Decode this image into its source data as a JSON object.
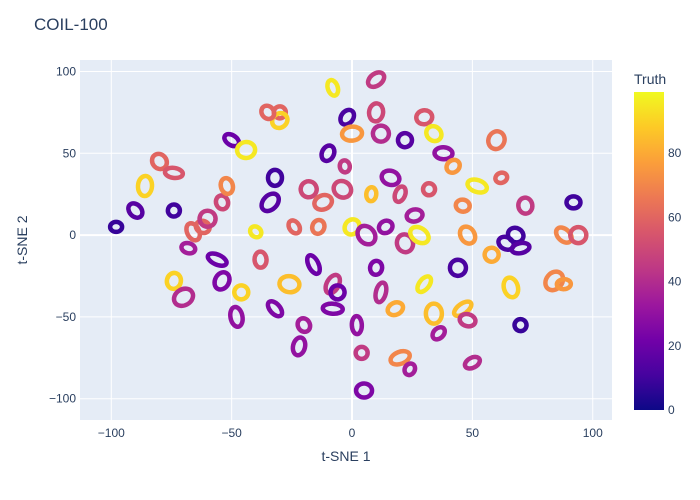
{
  "chart_data": {
    "type": "scatter",
    "title": "COIL-100",
    "xlabel": "t-SNE 1",
    "ylabel": "t-SNE 2",
    "xlim": [
      -113,
      108
    ],
    "ylim": [
      -113,
      107
    ],
    "xticks": [
      -100,
      -50,
      0,
      50,
      100
    ],
    "yticks": [
      -100,
      -50,
      0,
      50,
      100
    ],
    "xtick_labels": [
      "−100",
      "−50",
      "0",
      "50",
      "100"
    ],
    "ytick_labels": [
      "−100",
      "−50",
      "0",
      "50",
      "100"
    ],
    "grid": true,
    "colorbar": {
      "title": "Truth",
      "range": [
        0,
        99
      ],
      "ticks": [
        0,
        20,
        40,
        60,
        80
      ],
      "colorscale": "plasma"
    },
    "clusters": [
      {
        "x": -98,
        "y": 5,
        "truth": 8
      },
      {
        "x": -90,
        "y": 15,
        "truth": 15
      },
      {
        "x": -86,
        "y": 30,
        "truth": 90
      },
      {
        "x": -80,
        "y": 45,
        "truth": 60
      },
      {
        "x": -74,
        "y": 38,
        "truth": 55
      },
      {
        "x": -74,
        "y": 15,
        "truth": 10
      },
      {
        "x": -74,
        "y": -28,
        "truth": 90
      },
      {
        "x": -70,
        "y": -38,
        "truth": 40
      },
      {
        "x": -68,
        "y": -8,
        "truth": 35
      },
      {
        "x": -66,
        "y": 2,
        "truth": 60
      },
      {
        "x": -62,
        "y": 5,
        "truth": 60
      },
      {
        "x": -60,
        "y": 10,
        "truth": 45
      },
      {
        "x": -56,
        "y": -15,
        "truth": 20
      },
      {
        "x": -54,
        "y": 20,
        "truth": 50
      },
      {
        "x": -54,
        "y": -28,
        "truth": 25
      },
      {
        "x": -52,
        "y": 30,
        "truth": 70
      },
      {
        "x": -50,
        "y": 58,
        "truth": 20
      },
      {
        "x": -48,
        "y": -50,
        "truth": 30
      },
      {
        "x": -46,
        "y": -35,
        "truth": 90
      },
      {
        "x": -44,
        "y": 52,
        "truth": 95
      },
      {
        "x": -40,
        "y": 2,
        "truth": 95
      },
      {
        "x": -38,
        "y": -15,
        "truth": 55
      },
      {
        "x": -34,
        "y": 20,
        "truth": 15
      },
      {
        "x": -32,
        "y": 35,
        "truth": 10
      },
      {
        "x": -32,
        "y": -45,
        "truth": 25
      },
      {
        "x": -30,
        "y": 75,
        "truth": 60
      },
      {
        "x": -30,
        "y": 70,
        "truth": 90
      },
      {
        "x": -26,
        "y": -30,
        "truth": 85
      },
      {
        "x": -24,
        "y": 5,
        "truth": 60
      },
      {
        "x": -22,
        "y": -68,
        "truth": 30
      },
      {
        "x": -20,
        "y": -55,
        "truth": 35
      },
      {
        "x": -18,
        "y": 28,
        "truth": 50
      },
      {
        "x": -16,
        "y": -18,
        "truth": 20
      },
      {
        "x": -14,
        "y": 5,
        "truth": 65
      },
      {
        "x": -12,
        "y": 20,
        "truth": 60
      },
      {
        "x": -10,
        "y": 50,
        "truth": 15
      },
      {
        "x": -8,
        "y": 90,
        "truth": 95
      },
      {
        "x": -8,
        "y": -30,
        "truth": 45
      },
      {
        "x": -6,
        "y": -35,
        "truth": 20
      },
      {
        "x": -4,
        "y": 28,
        "truth": 50
      },
      {
        "x": -3,
        "y": 42,
        "truth": 45
      },
      {
        "x": -2,
        "y": 72,
        "truth": 12
      },
      {
        "x": 0,
        "y": 62,
        "truth": 75
      },
      {
        "x": 0,
        "y": 5,
        "truth": 95
      },
      {
        "x": 2,
        "y": -55,
        "truth": 30
      },
      {
        "x": 4,
        "y": -72,
        "truth": 45
      },
      {
        "x": 5,
        "y": -95,
        "truth": 25
      },
      {
        "x": 6,
        "y": 0,
        "truth": 35
      },
      {
        "x": 8,
        "y": 25,
        "truth": 85
      },
      {
        "x": 10,
        "y": 95,
        "truth": 45
      },
      {
        "x": 10,
        "y": -20,
        "truth": 25
      },
      {
        "x": 12,
        "y": 62,
        "truth": 40
      },
      {
        "x": 12,
        "y": -35,
        "truth": 40
      },
      {
        "x": 14,
        "y": 5,
        "truth": 30
      },
      {
        "x": 16,
        "y": 35,
        "truth": 30
      },
      {
        "x": 18,
        "y": -45,
        "truth": 80
      },
      {
        "x": 20,
        "y": 25,
        "truth": 50
      },
      {
        "x": 20,
        "y": -75,
        "truth": 70
      },
      {
        "x": 22,
        "y": 58,
        "truth": 15
      },
      {
        "x": 22,
        "y": -5,
        "truth": 45
      },
      {
        "x": 24,
        "y": -82,
        "truth": 35
      },
      {
        "x": 26,
        "y": 12,
        "truth": 35
      },
      {
        "x": 28,
        "y": 0,
        "truth": 95
      },
      {
        "x": 30,
        "y": 72,
        "truth": 55
      },
      {
        "x": 30,
        "y": -30,
        "truth": 95
      },
      {
        "x": 32,
        "y": 28,
        "truth": 55
      },
      {
        "x": 34,
        "y": 62,
        "truth": 95
      },
      {
        "x": 34,
        "y": -48,
        "truth": 85
      },
      {
        "x": 36,
        "y": -60,
        "truth": 35
      },
      {
        "x": 38,
        "y": 50,
        "truth": 30
      },
      {
        "x": 42,
        "y": 42,
        "truth": 75
      },
      {
        "x": 44,
        "y": -20,
        "truth": 12
      },
      {
        "x": 46,
        "y": -45,
        "truth": 85
      },
      {
        "x": 46,
        "y": 18,
        "truth": 70
      },
      {
        "x": 48,
        "y": 0,
        "truth": 75
      },
      {
        "x": 48,
        "y": -52,
        "truth": 45
      },
      {
        "x": 50,
        "y": -78,
        "truth": 40
      },
      {
        "x": 52,
        "y": 30,
        "truth": 95
      },
      {
        "x": 58,
        "y": -12,
        "truth": 80
      },
      {
        "x": 60,
        "y": 58,
        "truth": 65
      },
      {
        "x": 62,
        "y": 35,
        "truth": 60
      },
      {
        "x": 64,
        "y": -5,
        "truth": 12
      },
      {
        "x": 66,
        "y": -32,
        "truth": 90
      },
      {
        "x": 68,
        "y": 0,
        "truth": 10
      },
      {
        "x": 70,
        "y": -8,
        "truth": 15
      },
      {
        "x": 70,
        "y": -55,
        "truth": 8
      },
      {
        "x": 72,
        "y": 18,
        "truth": 45
      },
      {
        "x": 84,
        "y": -28,
        "truth": 70
      },
      {
        "x": 88,
        "y": -30,
        "truth": 75
      },
      {
        "x": 88,
        "y": 0,
        "truth": 70
      },
      {
        "x": 92,
        "y": 20,
        "truth": 10
      },
      {
        "x": 94,
        "y": 0,
        "truth": 55
      },
      {
        "x": -8,
        "y": -45,
        "truth": 25
      },
      {
        "x": -35,
        "y": 75,
        "truth": 60
      },
      {
        "x": 10,
        "y": 75,
        "truth": 50
      }
    ]
  }
}
